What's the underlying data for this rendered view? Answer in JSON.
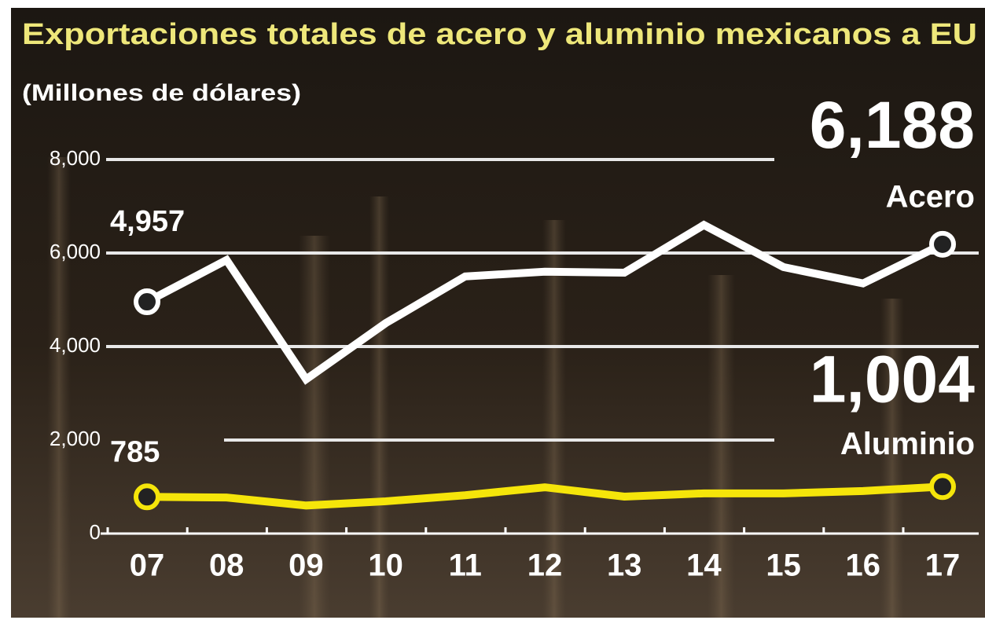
{
  "chart_data": {
    "type": "line",
    "title": "Exportaciones totales de acero y aluminio mexicanos a EU",
    "subtitle": "(Millones de dólares)",
    "categories": [
      "07",
      "08",
      "09",
      "10",
      "11",
      "12",
      "13",
      "14",
      "15",
      "16",
      "17"
    ],
    "series": [
      {
        "name": "Acero",
        "color": "#ffffff",
        "values": [
          4957,
          5850,
          3300,
          4500,
          5500,
          5600,
          5580,
          6600,
          5700,
          5350,
          6188
        ],
        "value_labels": [
          "4,957",
          null,
          null,
          null,
          null,
          null,
          null,
          null,
          null,
          null,
          "6,188"
        ]
      },
      {
        "name": "Aluminio",
        "color": "#f5e50a",
        "values": [
          785,
          770,
          600,
          690,
          820,
          990,
          790,
          860,
          860,
          910,
          1004
        ],
        "value_labels": [
          "785",
          null,
          null,
          null,
          null,
          null,
          null,
          null,
          null,
          null,
          "1,004"
        ]
      }
    ],
    "ylim": [
      0,
      8000
    ],
    "yticks": [
      0,
      {
        "value": 2000,
        "label": "2,000"
      },
      {
        "value": 4000,
        "label": "4,000"
      },
      {
        "value": 6000,
        "label": "6,000"
      },
      {
        "value": 8000,
        "label": "8,000"
      }
    ],
    "grid": true
  }
}
